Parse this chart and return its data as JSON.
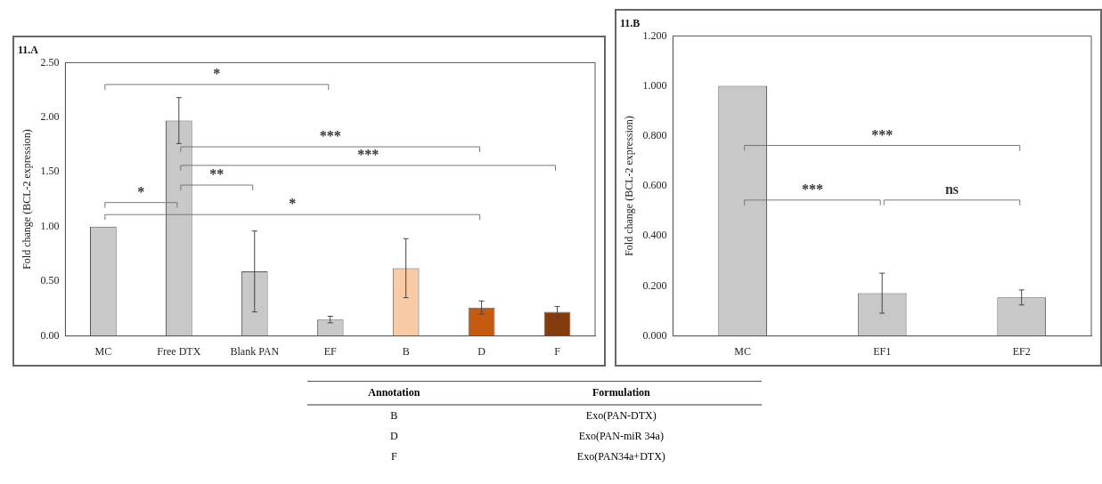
{
  "chart_data": [
    {
      "type": "bar",
      "title": "11.A",
      "ylabel": "Fold change (BCL-2 expression)",
      "categories": [
        "MC",
        "Free DTX",
        "Blank PAN",
        "EF",
        "B",
        "D",
        "F"
      ],
      "values": [
        1.0,
        1.97,
        0.59,
        0.15,
        0.62,
        0.26,
        0.22
      ],
      "colors": [
        "#c8c8c8",
        "#c8c8c8",
        "#c8c8c8",
        "#c8c8c8",
        "#f8cba6",
        "#c55a11",
        "#843c0c"
      ],
      "errors": [
        null,
        0.21,
        0.37,
        0.03,
        0.27,
        0.06,
        0.05
      ],
      "ylim": [
        0,
        2.5
      ],
      "yticks": [
        {
          "value": 0,
          "label": "0.00"
        },
        {
          "value": 0.5,
          "label": "0.50"
        },
        {
          "value": 1,
          "label": "1.00"
        },
        {
          "value": 1.5,
          "label": "1.50"
        },
        {
          "value": 2,
          "label": "2.00"
        },
        {
          "value": 2.5,
          "label": "2.50"
        }
      ],
      "annotations": [
        "*",
        "***",
        "***",
        "**",
        "*",
        "*"
      ]
    },
    {
      "type": "bar",
      "title": "11.B",
      "ylabel": "Fold change (BCL-2 expression)",
      "categories": [
        "MC",
        "EF1",
        "EF2"
      ],
      "values": [
        1.0,
        0.171,
        0.154
      ],
      "colors": [
        "#c8c8c8",
        "#c8c8c8",
        "#c8c8c8"
      ],
      "errors": [
        null,
        0.08,
        0.03
      ],
      "ylim": [
        0,
        1.2
      ],
      "yticks": [
        {
          "value": 0,
          "label": "0.000"
        },
        {
          "value": 0.2,
          "label": "0.200"
        },
        {
          "value": 0.4,
          "label": "0.400"
        },
        {
          "value": 0.6,
          "label": "0.600"
        },
        {
          "value": 0.8,
          "label": "0.800"
        },
        {
          "value": 1,
          "label": "1.000"
        },
        {
          "value": 1.2,
          "label": "1.200"
        }
      ],
      "annotations": [
        "***",
        "***",
        "ns"
      ]
    },
    {
      "type": "other",
      "annotations": [
        "Annotation",
        "Formulation",
        "B",
        "Exo(PAN-DTX)",
        "D",
        "Exo(PAN-miR 34a)",
        "F",
        "Exo(PAN34a+DTX)"
      ]
    }
  ]
}
